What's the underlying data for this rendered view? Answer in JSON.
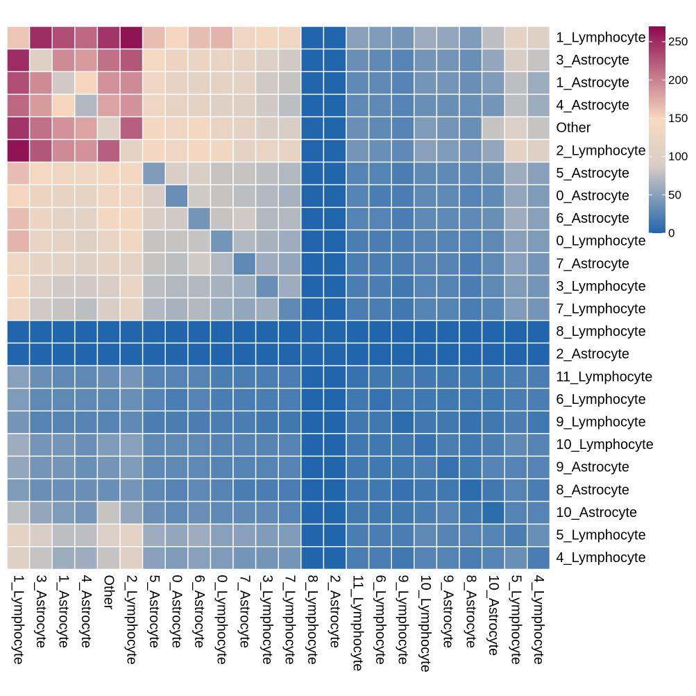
{
  "chart_data": {
    "type": "heatmap",
    "title": "",
    "xlabel": "",
    "ylabel": "",
    "labels": [
      "1_Lymphocyte",
      "3_Astrocyte",
      "1_Astrocyte",
      "4_Astrocyte",
      "Other",
      "2_Lymphocyte",
      "5_Astrocyte",
      "0_Astrocyte",
      "6_Astrocyte",
      "0_Lymphocyte",
      "7_Astrocyte",
      "3_Lymphocyte",
      "7_Lymphocyte",
      "8_Lymphocyte",
      "2_Astrocyte",
      "11_Lymphocyte",
      "6_Lymphocyte",
      "9_Lymphocyte",
      "10_Lymphocyte",
      "9_Astrocyte",
      "8_Astrocyte",
      "10_Astrocyte",
      "5_Lymphocyte",
      "4_Lymphocyte"
    ],
    "colorbar": {
      "min": 0,
      "max": 270,
      "ticks": [
        0,
        50,
        100,
        150,
        200,
        250
      ],
      "colors": [
        "#2166ac",
        "#d9cec6",
        "#f7d9c0",
        "#8b0a50"
      ]
    },
    "values": [
      [
        160,
        250,
        230,
        215,
        245,
        265,
        165,
        150,
        165,
        170,
        130,
        140,
        130,
        0,
        0,
        50,
        45,
        40,
        60,
        55,
        45,
        75,
        110,
        100
      ],
      [
        250,
        100,
        195,
        185,
        210,
        225,
        145,
        125,
        125,
        120,
        115,
        95,
        85,
        0,
        0,
        35,
        30,
        25,
        40,
        40,
        35,
        55,
        90,
        80
      ],
      [
        230,
        195,
        85,
        150,
        190,
        195,
        130,
        115,
        110,
        110,
        110,
        85,
        80,
        0,
        0,
        30,
        30,
        25,
        40,
        40,
        35,
        45,
        75,
        60
      ],
      [
        215,
        185,
        150,
        70,
        180,
        190,
        130,
        115,
        110,
        100,
        100,
        85,
        75,
        0,
        0,
        30,
        30,
        25,
        35,
        35,
        35,
        40,
        75,
        60
      ],
      [
        245,
        210,
        190,
        180,
        100,
        220,
        140,
        130,
        140,
        120,
        110,
        90,
        90,
        0,
        0,
        35,
        30,
        25,
        45,
        40,
        35,
        80,
        95,
        80
      ],
      [
        265,
        225,
        195,
        190,
        220,
        110,
        140,
        130,
        140,
        135,
        110,
        120,
        115,
        0,
        0,
        40,
        35,
        30,
        50,
        45,
        40,
        55,
        110,
        100
      ],
      [
        165,
        145,
        130,
        130,
        140,
        140,
        45,
        90,
        90,
        80,
        80,
        75,
        70,
        0,
        0,
        25,
        25,
        20,
        30,
        30,
        30,
        35,
        60,
        50
      ],
      [
        150,
        125,
        115,
        115,
        130,
        130,
        90,
        35,
        85,
        80,
        75,
        70,
        65,
        0,
        0,
        25,
        20,
        20,
        30,
        30,
        25,
        30,
        55,
        45
      ],
      [
        165,
        125,
        110,
        110,
        140,
        140,
        90,
        85,
        40,
        80,
        85,
        70,
        70,
        0,
        0,
        25,
        25,
        20,
        30,
        30,
        30,
        35,
        60,
        50
      ],
      [
        170,
        120,
        110,
        100,
        120,
        135,
        80,
        80,
        80,
        40,
        70,
        65,
        60,
        0,
        0,
        20,
        20,
        20,
        25,
        25,
        25,
        30,
        50,
        45
      ],
      [
        130,
        115,
        110,
        100,
        110,
        110,
        80,
        75,
        85,
        70,
        30,
        60,
        55,
        0,
        0,
        20,
        20,
        20,
        25,
        25,
        20,
        30,
        50,
        40
      ],
      [
        140,
        95,
        85,
        85,
        90,
        120,
        75,
        70,
        70,
        65,
        60,
        35,
        60,
        0,
        0,
        20,
        20,
        15,
        25,
        25,
        20,
        30,
        45,
        40
      ],
      [
        130,
        85,
        80,
        75,
        90,
        115,
        70,
        65,
        70,
        60,
        55,
        60,
        30,
        0,
        0,
        20,
        20,
        15,
        25,
        25,
        20,
        25,
        45,
        40
      ],
      [
        0,
        0,
        0,
        0,
        0,
        0,
        0,
        0,
        0,
        0,
        0,
        0,
        0,
        0,
        0,
        0,
        0,
        0,
        0,
        0,
        0,
        0,
        0,
        0
      ],
      [
        0,
        0,
        0,
        0,
        0,
        0,
        0,
        0,
        0,
        0,
        0,
        0,
        0,
        0,
        0,
        0,
        0,
        0,
        0,
        0,
        0,
        0,
        0,
        0
      ],
      [
        50,
        35,
        30,
        30,
        35,
        40,
        25,
        25,
        25,
        20,
        20,
        20,
        20,
        0,
        0,
        10,
        15,
        15,
        15,
        15,
        15,
        15,
        20,
        20
      ],
      [
        45,
        30,
        30,
        30,
        30,
        35,
        25,
        20,
        25,
        20,
        20,
        20,
        20,
        0,
        0,
        15,
        10,
        15,
        15,
        15,
        15,
        15,
        20,
        20
      ],
      [
        40,
        25,
        25,
        25,
        25,
        30,
        20,
        20,
        20,
        20,
        20,
        15,
        15,
        0,
        0,
        15,
        15,
        5,
        15,
        15,
        10,
        15,
        20,
        15
      ],
      [
        60,
        40,
        40,
        35,
        45,
        50,
        30,
        30,
        30,
        25,
        25,
        25,
        25,
        0,
        0,
        15,
        15,
        15,
        10,
        20,
        15,
        20,
        30,
        25
      ],
      [
        55,
        40,
        40,
        35,
        40,
        45,
        30,
        30,
        30,
        25,
        25,
        25,
        25,
        0,
        0,
        15,
        15,
        15,
        20,
        10,
        15,
        25,
        25,
        25
      ],
      [
        45,
        35,
        35,
        35,
        35,
        40,
        30,
        25,
        30,
        25,
        20,
        20,
        20,
        0,
        0,
        15,
        15,
        10,
        15,
        15,
        5,
        15,
        25,
        20
      ],
      [
        75,
        55,
        45,
        40,
        80,
        55,
        35,
        30,
        35,
        30,
        30,
        30,
        25,
        0,
        0,
        15,
        15,
        15,
        20,
        25,
        15,
        5,
        25,
        25
      ],
      [
        110,
        90,
        75,
        75,
        95,
        110,
        60,
        55,
        60,
        50,
        50,
        45,
        45,
        0,
        0,
        20,
        20,
        20,
        30,
        25,
        25,
        25,
        20,
        35
      ],
      [
        100,
        80,
        60,
        60,
        80,
        100,
        50,
        45,
        50,
        45,
        40,
        40,
        40,
        0,
        0,
        20,
        20,
        15,
        25,
        25,
        20,
        25,
        35,
        20
      ]
    ]
  }
}
